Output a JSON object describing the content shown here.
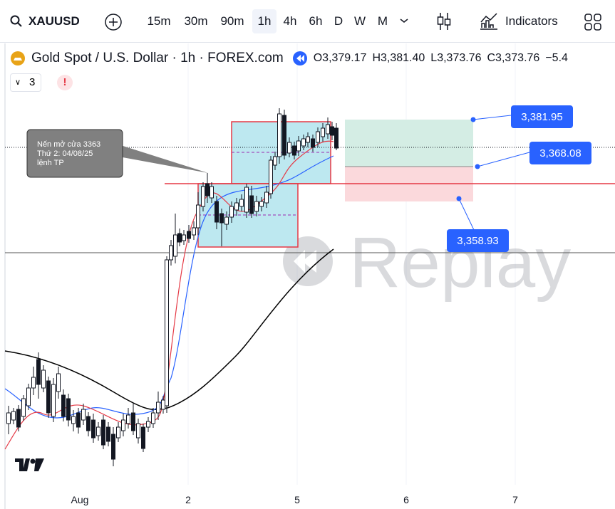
{
  "toolbar": {
    "symbol": "XAUUSD",
    "intervals": [
      "15m",
      "30m",
      "90m",
      "1h",
      "4h",
      "6h",
      "D",
      "W",
      "M"
    ],
    "active_interval": "1h",
    "indicators": "Indicators"
  },
  "legend": {
    "title": "Gold Spot / U.S. Dollar · 1h · FOREX.com",
    "ohlc": [
      "O3,379.17",
      "H3,381.40",
      "L3,373.76",
      "C3,373.76",
      "−5.4"
    ]
  },
  "indicator_count": "3",
  "alert": "!",
  "annotation": {
    "lines": [
      "Nến mở cửa 3363",
      "Thứ 2: 04/08/25",
      "lệnh TP"
    ]
  },
  "price_labels": [
    "3,381.95",
    "3,368.08",
    "3,358.93"
  ],
  "time_axis": [
    "Aug",
    "2",
    "5",
    "6",
    "7"
  ],
  "watermark": "Replay"
}
